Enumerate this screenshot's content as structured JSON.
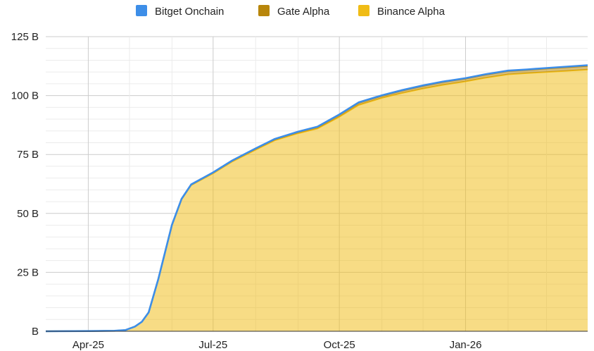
{
  "chart_data": {
    "type": "area",
    "stacked": true,
    "grid": true,
    "legend_position": "top",
    "x_ticks": [
      "Apr-25",
      "Jul-25",
      "Oct-25",
      "Jan-26"
    ],
    "x_tick_dates": [
      "2025-04-01",
      "2025-07-01",
      "2025-10-01",
      "2026-01-01"
    ],
    "x_range": [
      "2025-03-01",
      "2026-03-31"
    ],
    "y_ticks": [
      "B",
      "25 B",
      "50 B",
      "75 B",
      "100 B",
      "125 B"
    ],
    "y_tick_values": [
      0,
      25,
      50,
      75,
      100,
      125
    ],
    "ylim": [
      0,
      125
    ],
    "y_unit": "B",
    "x": [
      "2025-03-01",
      "2025-04-01",
      "2025-04-20",
      "2025-04-28",
      "2025-05-05",
      "2025-05-10",
      "2025-05-15",
      "2025-05-22",
      "2025-06-01",
      "2025-06-08",
      "2025-06-15",
      "2025-07-01",
      "2025-07-15",
      "2025-08-01",
      "2025-08-15",
      "2025-09-01",
      "2025-09-15",
      "2025-10-01",
      "2025-10-15",
      "2025-11-01",
      "2025-11-15",
      "2025-12-01",
      "2025-12-15",
      "2026-01-01",
      "2026-01-15",
      "2026-02-01",
      "2026-02-15",
      "2026-03-01",
      "2026-03-31"
    ],
    "series": [
      {
        "name": "Binance Alpha",
        "color": "#f0bc16",
        "values": [
          0,
          0.1,
          0.2,
          0.5,
          2,
          4,
          8,
          22,
          45,
          56,
          62,
          67,
          72,
          77,
          81,
          84,
          86,
          91,
          96,
          99,
          101,
          103,
          104.5,
          106,
          107.5,
          109,
          109.5,
          110,
          111
        ]
      },
      {
        "name": "Gate Alpha",
        "color": "#b8860b",
        "values": [
          0,
          0,
          0,
          0,
          0,
          0,
          0,
          0,
          0.1,
          0.1,
          0.2,
          0.3,
          0.4,
          0.5,
          0.5,
          0.6,
          0.7,
          0.8,
          0.9,
          0.9,
          1.0,
          1.1,
          1.2,
          1.2,
          1.3,
          1.4,
          1.4,
          1.5,
          1.6
        ]
      },
      {
        "name": "Bitget Onchain",
        "color": "#3d8ee8",
        "values": [
          0,
          0,
          0,
          0,
          0,
          0,
          0,
          0,
          0.1,
          0.1,
          0.1,
          0.1,
          0.1,
          0.1,
          0.1,
          0.1,
          0.1,
          0.2,
          0.2,
          0.2,
          0.2,
          0.2,
          0.2,
          0.2,
          0.2,
          0.2,
          0.2,
          0.2,
          0.3
        ]
      }
    ],
    "legend": [
      {
        "label": "Bitget Onchain",
        "color": "#3d8ee8"
      },
      {
        "label": "Gate Alpha",
        "color": "#b8860b"
      },
      {
        "label": "Binance Alpha",
        "color": "#f0bc16"
      }
    ]
  }
}
